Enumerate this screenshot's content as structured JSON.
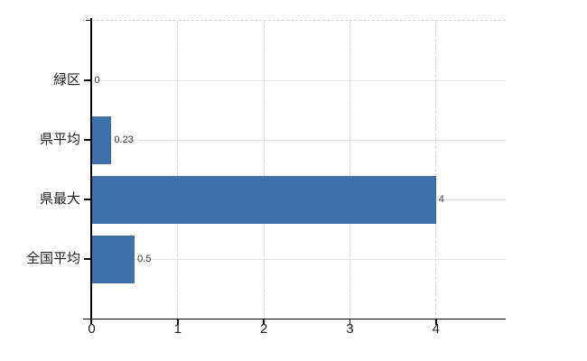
{
  "chart_data": {
    "type": "bar",
    "orientation": "horizontal",
    "title": "",
    "xlabel": "",
    "ylabel": "",
    "categories": [
      "緑区",
      "県平均",
      "県最大",
      "全国平均"
    ],
    "values": [
      0,
      0.23,
      4,
      0.5
    ],
    "value_labels": [
      "0",
      "0.23",
      "4",
      "0.5"
    ],
    "xticks": [
      0,
      1,
      2,
      3,
      4
    ],
    "xtick_labels": [
      "0",
      "1",
      "2",
      "3",
      "4"
    ],
    "xlim": [
      0,
      4.81
    ],
    "grid": {
      "horizontal": "solid",
      "vertical": "dashed",
      "plot_top_border": "dashed"
    },
    "legend": "none",
    "colors": {
      "bar": "#3f70ab",
      "axis": "#000000",
      "grid_horizontal": "#dfe5df",
      "grid_vertical": "#d9d9d9",
      "top_border": "#d3d0cd",
      "value_label": "#3a3a3a",
      "tick_label": "#1f1f1f",
      "background": "#ffffff"
    }
  }
}
